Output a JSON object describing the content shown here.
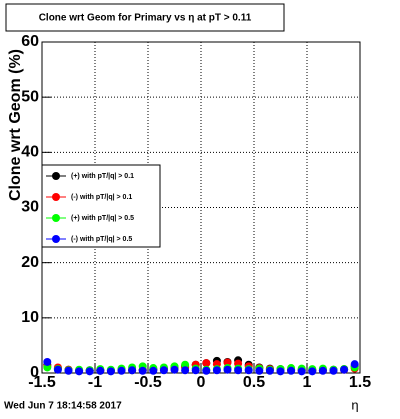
{
  "chart_data": {
    "type": "scatter",
    "title": "Clone wrt Geom for Primary vs  η at pT > 0.11",
    "x_label": "η",
    "y_label": "Clone wrt Geom (%)",
    "footer": "Wed Jun  7 18:14:58 2017",
    "xlim": [
      -1.5,
      1.5
    ],
    "ylim": [
      0,
      60
    ],
    "xticks": [
      -1.5,
      -1,
      -0.5,
      0,
      0.5,
      1,
      1.5
    ],
    "yticks": [
      0,
      10,
      20,
      30,
      40,
      50,
      60
    ],
    "grid": true,
    "legend": "left",
    "x": [
      -1.45,
      -1.35,
      -1.25,
      -1.15,
      -1.05,
      -0.95,
      -0.85,
      -0.75,
      -0.65,
      -0.55,
      -0.45,
      -0.35,
      -0.25,
      -0.15,
      -0.05,
      0.05,
      0.15,
      0.25,
      0.35,
      0.45,
      0.55,
      0.65,
      0.75,
      0.85,
      0.95,
      1.05,
      1.15,
      1.25,
      1.35,
      1.45
    ],
    "series": [
      {
        "name": "(+) with pT/|q| > 0.1",
        "color": "#000000",
        "values": [
          1.5,
          0.8,
          0.6,
          0.4,
          0.5,
          0.4,
          0.5,
          0.6,
          0.5,
          0.6,
          0.7,
          0.8,
          1.0,
          1.2,
          1.5,
          1.8,
          2.2,
          2.0,
          2.3,
          1.5,
          1.0,
          0.8,
          0.7,
          0.6,
          0.6,
          0.5,
          0.5,
          0.6,
          0.7,
          1.2
        ]
      },
      {
        "name": "(-) with pT/|q| > 0.1",
        "color": "#ff0000",
        "values": [
          1.2,
          1.0,
          0.6,
          0.5,
          0.4,
          0.5,
          0.4,
          0.5,
          0.6,
          0.5,
          0.6,
          0.7,
          0.8,
          1.0,
          1.5,
          1.8,
          1.6,
          1.9,
          1.7,
          1.2,
          0.9,
          0.7,
          0.6,
          0.5,
          0.5,
          0.4,
          0.5,
          0.5,
          0.6,
          0.8
        ]
      },
      {
        "name": "(+) with pT/|q| > 0.5",
        "color": "#00ff00",
        "values": [
          1.0,
          0.7,
          0.5,
          0.6,
          0.5,
          0.7,
          0.6,
          0.8,
          1.0,
          1.2,
          0.9,
          1.0,
          1.2,
          1.5,
          0.8,
          0.6,
          0.7,
          0.9,
          0.8,
          0.7,
          0.8,
          0.6,
          0.7,
          0.9,
          0.8,
          0.7,
          0.8,
          0.6,
          0.7,
          1.0
        ]
      },
      {
        "name": "(-) with pT/|q| > 0.5",
        "color": "#0000ff",
        "values": [
          2.0,
          0.6,
          0.4,
          0.3,
          0.3,
          0.4,
          0.3,
          0.4,
          0.5,
          0.4,
          0.4,
          0.5,
          0.6,
          0.5,
          0.5,
          0.4,
          0.5,
          0.6,
          0.5,
          0.5,
          0.4,
          0.4,
          0.3,
          0.4,
          0.3,
          0.3,
          0.4,
          0.4,
          0.6,
          1.6
        ]
      }
    ]
  }
}
